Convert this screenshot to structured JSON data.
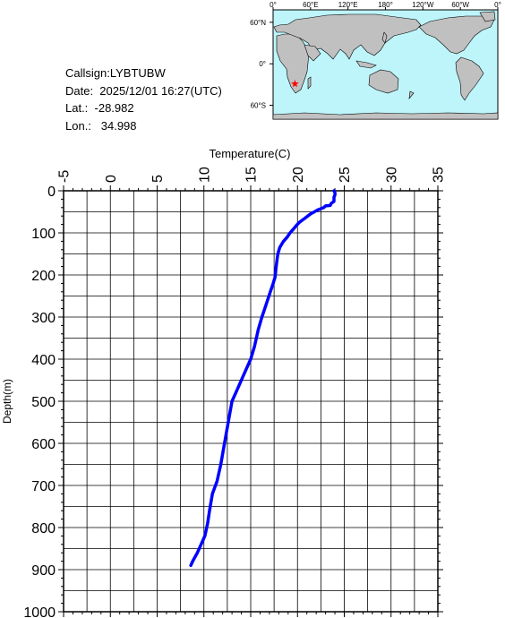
{
  "info": {
    "callsign": "Callsign:LYBTUBW",
    "date": "Date:  2025/12/01 16:27(UTC)",
    "lat": "Lat.:  -28.982",
    "lon": "Lon.:   34.998"
  },
  "map": {
    "lon_labels": [
      "0°",
      "60°E",
      "120°E",
      "180°",
      "120°W",
      "60°W",
      "0°"
    ],
    "lat_labels": [
      "60°N",
      "0°",
      "60°S"
    ],
    "ocean_color": "#bdf5fa",
    "land_color": "#c0c0c0",
    "marker": {
      "lon": 34.998,
      "lat": -28.982,
      "color": "#ff0000",
      "shape": "star"
    }
  },
  "chart_data": {
    "type": "line",
    "xlabel": "Temperature(C)",
    "ylabel": "Depth(m)",
    "xlim": [
      -5,
      35
    ],
    "ylim": [
      1000,
      0
    ],
    "x_ticks": [
      "-5",
      "0",
      "5",
      "10",
      "15",
      "20",
      "25",
      "30",
      "35"
    ],
    "y_ticks": [
      "0",
      "100",
      "200",
      "300",
      "400",
      "500",
      "600",
      "700",
      "800",
      "900",
      "1000"
    ],
    "x_axis_position": "top",
    "grid": true,
    "series_color": "#0000ff",
    "series": [
      {
        "points": [
          [
            23.9,
            0
          ],
          [
            24.0,
            5
          ],
          [
            24.0,
            10
          ],
          [
            23.9,
            15
          ],
          [
            23.9,
            25
          ],
          [
            23.6,
            30
          ],
          [
            23.5,
            35
          ],
          [
            23.0,
            36
          ],
          [
            22.8,
            40
          ],
          [
            22.2,
            45
          ],
          [
            21.8,
            50
          ],
          [
            21.4,
            55
          ],
          [
            21.1,
            60
          ],
          [
            20.8,
            65
          ],
          [
            20.5,
            70
          ],
          [
            20.2,
            75
          ],
          [
            19.9,
            82
          ],
          [
            19.6,
            90
          ],
          [
            19.2,
            100
          ],
          [
            18.9,
            110
          ],
          [
            18.5,
            120
          ],
          [
            18.1,
            135
          ],
          [
            17.9,
            150
          ],
          [
            17.8,
            165
          ],
          [
            17.7,
            185
          ],
          [
            17.6,
            205
          ],
          [
            17.4,
            220
          ],
          [
            17.1,
            240
          ],
          [
            16.8,
            260
          ],
          [
            16.5,
            280
          ],
          [
            16.2,
            300
          ],
          [
            15.8,
            330
          ],
          [
            15.4,
            370
          ],
          [
            15.0,
            400
          ],
          [
            14.6,
            420
          ],
          [
            14.2,
            440
          ],
          [
            13.6,
            470
          ],
          [
            13.0,
            500
          ],
          [
            12.6,
            550
          ],
          [
            12.2,
            600
          ],
          [
            11.8,
            650
          ],
          [
            11.4,
            690
          ],
          [
            10.9,
            720
          ],
          [
            10.6,
            760
          ],
          [
            10.4,
            790
          ],
          [
            10.1,
            820
          ],
          [
            9.7,
            840
          ],
          [
            9.3,
            860
          ],
          [
            8.8,
            880
          ],
          [
            8.6,
            890
          ]
        ]
      }
    ]
  }
}
